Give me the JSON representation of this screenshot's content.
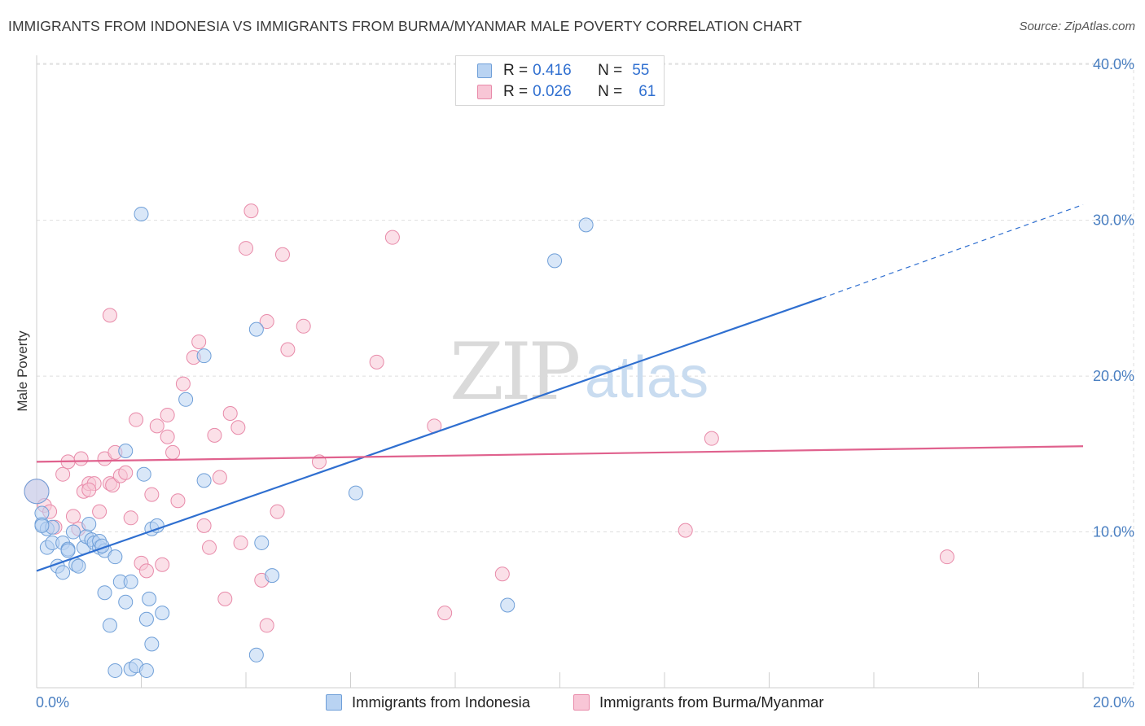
{
  "title": "IMMIGRANTS FROM INDONESIA VS IMMIGRANTS FROM BURMA/MYANMAR MALE POVERTY CORRELATION CHART",
  "source": "Source: ZipAtlas.com",
  "watermark": {
    "zip": "ZIP",
    "atlas": "atlas"
  },
  "colors": {
    "blue_fill": "#b9d3f2",
    "blue_stroke": "#6f9fd8",
    "blue_line": "#2f6fd0",
    "pink_fill": "#f8c6d6",
    "pink_stroke": "#e88aa9",
    "pink_line": "#e0628e",
    "grid": "#dedede",
    "tick_text": "#4a7fc1"
  },
  "legend": {
    "rows": [
      {
        "r_label": "R =",
        "r_value": "0.416",
        "n_label": "N =",
        "n_value": "55"
      },
      {
        "r_label": "R =",
        "r_value": "0.026",
        "n_label": "N =",
        "n_value": "61"
      }
    ]
  },
  "bottom_legend": {
    "series1": "Immigrants from Indonesia",
    "series2": "Immigrants from Burma/Myanmar"
  },
  "chart_data": {
    "type": "scatter",
    "title": "IMMIGRANTS FROM INDONESIA VS IMMIGRANTS FROM BURMA/MYANMAR MALE POVERTY CORRELATION CHART",
    "xlabel": "",
    "ylabel": "Male Poverty",
    "xlim": [
      0,
      20
    ],
    "ylim": [
      0,
      41
    ],
    "x_ticks": [
      "0.0%",
      "20.0%"
    ],
    "y_ticks": [
      {
        "value": 10,
        "label": "10.0%"
      },
      {
        "value": 20,
        "label": "20.0%"
      },
      {
        "value": 30,
        "label": "30.0%"
      },
      {
        "value": 40,
        "label": "40.0%"
      }
    ],
    "grid": true,
    "legend_position": "top-center",
    "series": [
      {
        "name": "Immigrants from Indonesia",
        "R": 0.416,
        "N": 55,
        "trend": {
          "x0": 0,
          "y0": 7.5,
          "x1": 15,
          "y1": 25.0,
          "dashed_to_x": 20,
          "dashed_to_y": 31.0
        },
        "points": [
          [
            0.0,
            12.6
          ],
          [
            0.1,
            10.5
          ],
          [
            0.1,
            11.2
          ],
          [
            0.2,
            10.2
          ],
          [
            0.3,
            10.3
          ],
          [
            0.2,
            9.0
          ],
          [
            0.3,
            9.3
          ],
          [
            0.4,
            7.8
          ],
          [
            0.5,
            7.4
          ],
          [
            0.5,
            9.3
          ],
          [
            0.6,
            8.9
          ],
          [
            0.7,
            10.0
          ],
          [
            0.75,
            7.9
          ],
          [
            0.8,
            7.8
          ],
          [
            0.9,
            9.0
          ],
          [
            0.95,
            9.7
          ],
          [
            1.05,
            9.5
          ],
          [
            1.1,
            9.3
          ],
          [
            1.2,
            9.0
          ],
          [
            1.2,
            9.4
          ],
          [
            1.0,
            10.5
          ],
          [
            1.3,
            8.8
          ],
          [
            1.5,
            8.4
          ],
          [
            1.6,
            6.8
          ],
          [
            1.7,
            5.5
          ],
          [
            1.8,
            6.8
          ],
          [
            1.3,
            6.1
          ],
          [
            1.4,
            4.0
          ],
          [
            1.5,
            1.1
          ],
          [
            1.8,
            1.2
          ],
          [
            1.9,
            1.4
          ],
          [
            2.1,
            1.1
          ],
          [
            2.2,
            2.8
          ],
          [
            2.1,
            4.4
          ],
          [
            2.4,
            4.8
          ],
          [
            2.15,
            5.7
          ],
          [
            2.2,
            10.2
          ],
          [
            2.3,
            10.4
          ],
          [
            2.05,
            13.7
          ],
          [
            1.7,
            15.2
          ],
          [
            2.85,
            18.5
          ],
          [
            3.2,
            13.3
          ],
          [
            3.2,
            21.3
          ],
          [
            4.2,
            23.0
          ],
          [
            4.3,
            9.3
          ],
          [
            4.5,
            7.2
          ],
          [
            4.2,
            2.1
          ],
          [
            2.0,
            30.4
          ],
          [
            6.1,
            12.5
          ],
          [
            9.0,
            5.3
          ],
          [
            9.9,
            27.4
          ],
          [
            10.5,
            29.7
          ],
          [
            0.1,
            10.4
          ],
          [
            0.6,
            8.8
          ],
          [
            1.25,
            9.1
          ]
        ]
      },
      {
        "name": "Immigrants from Burma/Myanmar",
        "R": 0.026,
        "N": 61,
        "trend": {
          "x0": 0,
          "y0": 14.5,
          "x1": 20,
          "y1": 15.5
        },
        "points": [
          [
            0.0,
            12.6
          ],
          [
            0.15,
            11.7
          ],
          [
            0.25,
            11.3
          ],
          [
            0.35,
            10.3
          ],
          [
            0.5,
            13.7
          ],
          [
            0.6,
            14.5
          ],
          [
            0.7,
            11.0
          ],
          [
            0.8,
            10.2
          ],
          [
            0.85,
            14.7
          ],
          [
            0.9,
            12.6
          ],
          [
            1.0,
            13.1
          ],
          [
            1.1,
            13.1
          ],
          [
            1.2,
            11.3
          ],
          [
            1.3,
            14.7
          ],
          [
            1.4,
            13.1
          ],
          [
            1.45,
            13.0
          ],
          [
            1.5,
            15.1
          ],
          [
            1.6,
            13.6
          ],
          [
            1.7,
            13.8
          ],
          [
            1.8,
            10.9
          ],
          [
            1.9,
            17.2
          ],
          [
            2.0,
            8.0
          ],
          [
            2.1,
            7.5
          ],
          [
            2.2,
            12.4
          ],
          [
            2.3,
            16.8
          ],
          [
            2.4,
            7.9
          ],
          [
            2.5,
            16.1
          ],
          [
            2.6,
            15.1
          ],
          [
            2.7,
            12.0
          ],
          [
            2.8,
            19.5
          ],
          [
            2.5,
            17.5
          ],
          [
            3.0,
            21.2
          ],
          [
            3.1,
            22.2
          ],
          [
            3.2,
            10.4
          ],
          [
            3.3,
            9.0
          ],
          [
            3.4,
            16.2
          ],
          [
            3.5,
            13.5
          ],
          [
            3.6,
            5.7
          ],
          [
            3.7,
            17.6
          ],
          [
            3.85,
            16.7
          ],
          [
            3.9,
            9.3
          ],
          [
            4.0,
            28.2
          ],
          [
            4.1,
            30.6
          ],
          [
            4.3,
            6.9
          ],
          [
            4.4,
            23.5
          ],
          [
            4.4,
            4.0
          ],
          [
            4.6,
            11.3
          ],
          [
            4.7,
            27.8
          ],
          [
            4.8,
            21.7
          ],
          [
            5.1,
            23.2
          ],
          [
            5.4,
            14.5
          ],
          [
            1.4,
            23.9
          ],
          [
            6.5,
            20.9
          ],
          [
            6.8,
            28.9
          ],
          [
            7.6,
            16.8
          ],
          [
            7.8,
            4.8
          ],
          [
            8.9,
            7.3
          ],
          [
            12.4,
            10.1
          ],
          [
            12.9,
            16.0
          ],
          [
            17.4,
            8.4
          ],
          [
            1.0,
            12.7
          ]
        ]
      }
    ]
  }
}
